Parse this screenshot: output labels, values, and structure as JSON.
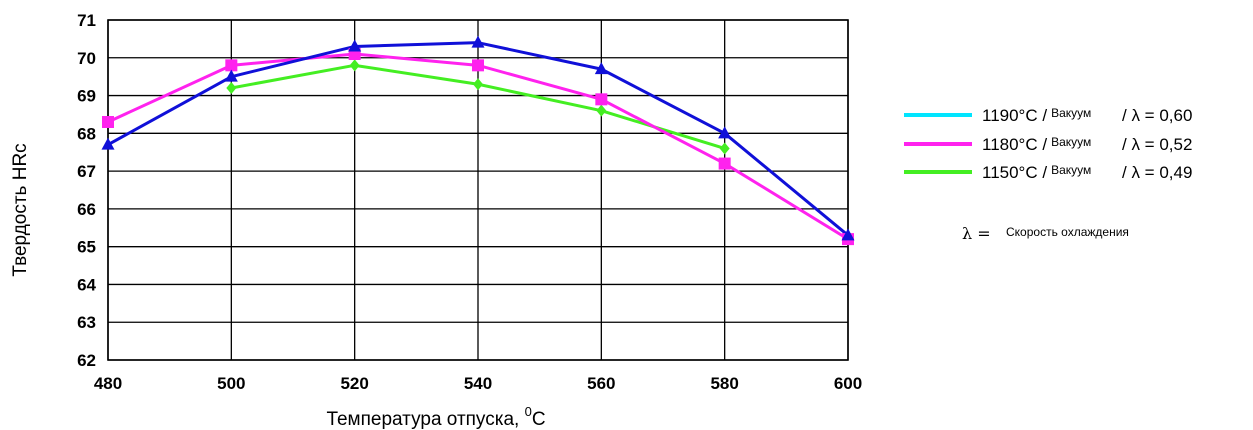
{
  "chart_data": {
    "type": "line",
    "xlabel": "Температура отпуска,",
    "xlabel_sup": "0",
    "xlabel_unit": "C",
    "ylabel": "Твердость HRc",
    "x": [
      480,
      500,
      520,
      540,
      560,
      580,
      600
    ],
    "xlim": [
      480,
      600
    ],
    "ylim": [
      62,
      71
    ],
    "yticks": [
      62,
      63,
      64,
      65,
      66,
      67,
      68,
      69,
      70,
      71
    ],
    "grid": true,
    "legend_position": "right",
    "series": [
      {
        "temp": "1190°C /",
        "medium": "Вакуум",
        "lambda_label": "/ λ = 0,60",
        "color": "#1010d8",
        "legend_color": "#00e5ff",
        "marker": "triangle",
        "values": [
          67.7,
          69.5,
          70.3,
          70.4,
          69.7,
          68.0,
          65.3
        ]
      },
      {
        "temp": "1180°C /",
        "medium": "Вакуум",
        "lambda_label": "/ λ = 0,52",
        "color": "#ff22ee",
        "legend_color": "#ff22ee",
        "marker": "square",
        "values": [
          68.3,
          69.8,
          70.1,
          69.8,
          68.9,
          67.2,
          65.2
        ]
      },
      {
        "temp": "1150°C /",
        "medium": "Вакуум",
        "lambda_label": "/ λ = 0,49",
        "color": "#44ee22",
        "legend_color": "#44ee22",
        "marker": "diamond",
        "values": [
          null,
          69.2,
          69.8,
          69.3,
          68.6,
          67.6,
          null
        ]
      }
    ],
    "note_symbol": "λ =",
    "note_text": "Скорость охлаждения"
  }
}
